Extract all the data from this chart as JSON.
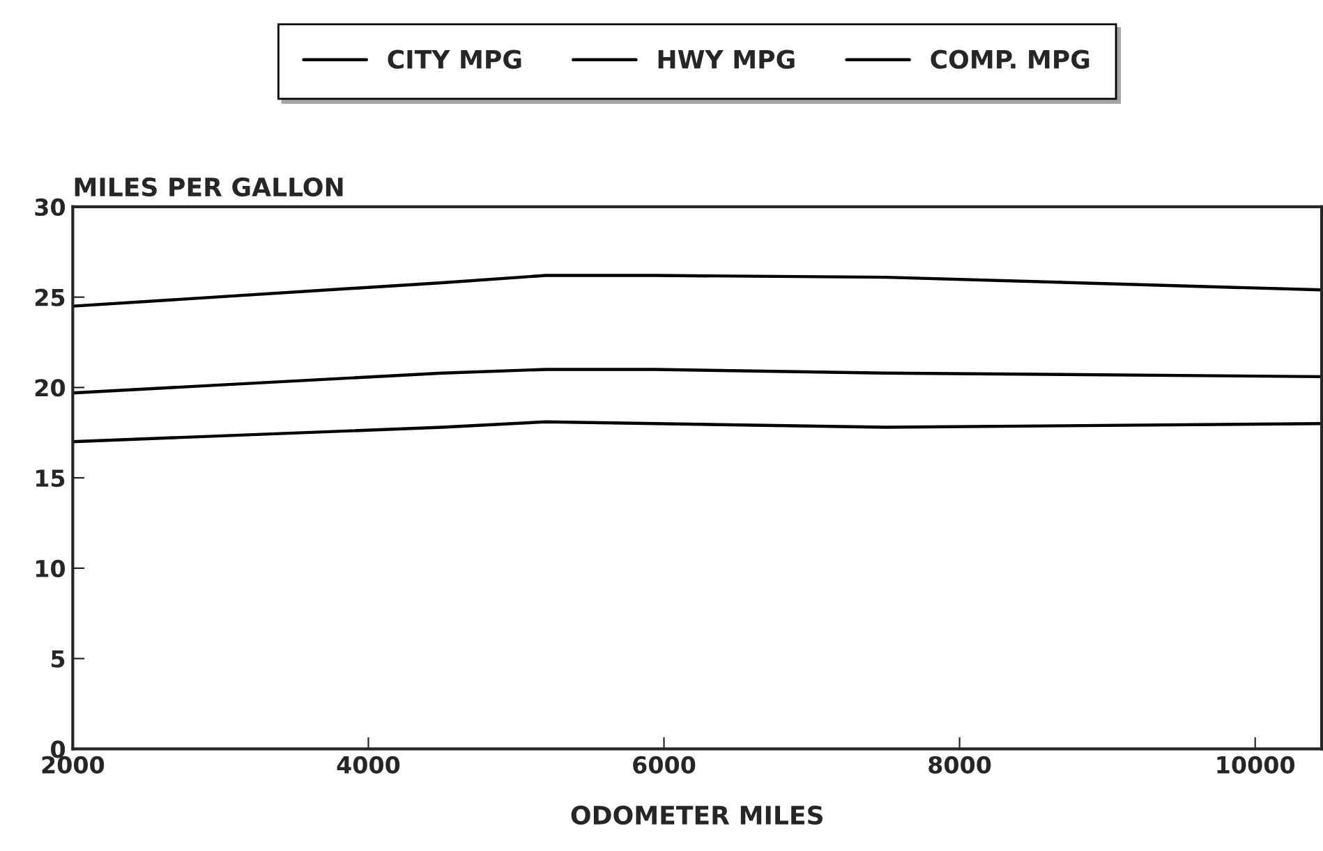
{
  "chart_data": {
    "type": "line",
    "ylabel": "MILES PER GALLON",
    "xlabel": "ODOMETER MILES",
    "xlim": [
      2000,
      10450
    ],
    "xticks": [
      2000,
      4000,
      6000,
      8000,
      10000
    ],
    "ylim": [
      0,
      30
    ],
    "yticks": [
      0,
      5,
      10,
      15,
      20,
      25,
      30
    ],
    "legend": "top",
    "grid": false,
    "marker": "none",
    "line_style": "solid",
    "series": [
      {
        "name": "CITY MPG",
        "color": "#000000",
        "x": [
          2000,
          4500,
          5200,
          7500,
          10450
        ],
        "values": [
          17.0,
          17.8,
          18.1,
          17.8,
          18.0
        ]
      },
      {
        "name": "HWY MPG",
        "color": "#000000",
        "x": [
          2000,
          4500,
          5200,
          5940,
          7500,
          10450
        ],
        "values": [
          24.5,
          25.8,
          26.2,
          26.2,
          26.1,
          25.4
        ]
      },
      {
        "name": "COMP. MPG",
        "color": "#000000",
        "x": [
          2000,
          4500,
          5200,
          5940,
          7500,
          10450
        ],
        "values": [
          19.7,
          20.8,
          21.0,
          21.0,
          20.8,
          20.6
        ]
      }
    ]
  }
}
